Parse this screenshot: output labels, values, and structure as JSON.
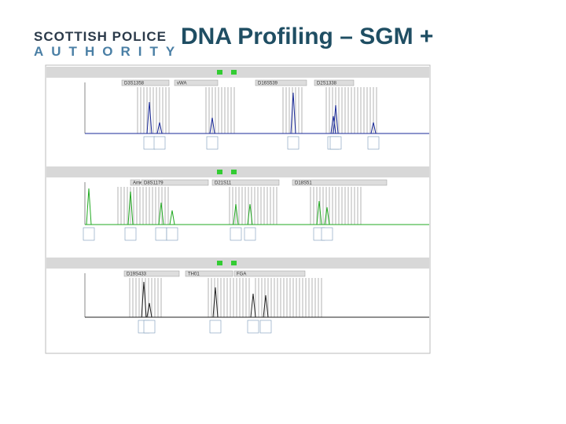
{
  "logo": {
    "line1": "SCOTTISH POLICE",
    "line2": "AUTHORITY"
  },
  "title": "DNA Profiling – SGM +",
  "panels": [
    {
      "loci": [
        "D3S1358",
        "vWA",
        "D16S539",
        "D2S1338"
      ]
    },
    {
      "loci": [
        "Amel",
        "D8S1179",
        "D21S11",
        "D18S51"
      ]
    },
    {
      "loci": [
        "D19S433",
        "TH01",
        "FGA"
      ]
    }
  ]
}
